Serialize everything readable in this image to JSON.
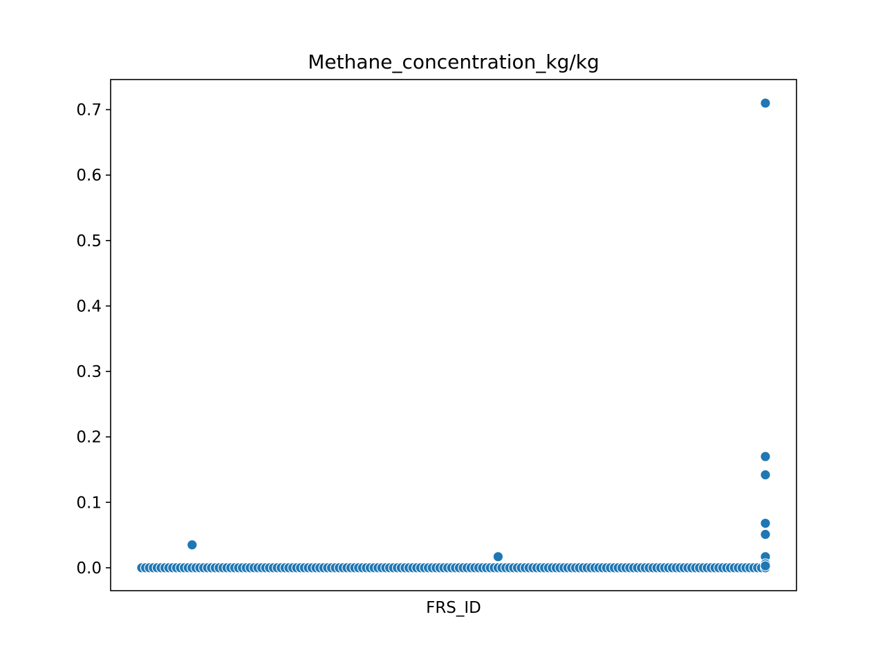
{
  "chart_data": {
    "type": "scatter",
    "title": "Methane_concentration_kg/kg",
    "xlabel": "FRS_ID",
    "ylabel": "",
    "x_ticks_shown": false,
    "ylim": [
      -0.035,
      0.746
    ],
    "yticks": [
      0.0,
      0.1,
      0.2,
      0.3,
      0.4,
      0.5,
      0.6,
      0.7
    ],
    "ytick_labels": [
      "0.0",
      "0.1",
      "0.2",
      "0.3",
      "0.4",
      "0.5",
      "0.6",
      "0.7"
    ],
    "grid": false,
    "legend": false,
    "marker_color": "#1f77b4",
    "marker_edge_color": "#ffffff",
    "baseline_category_count": 162,
    "baseline_value": 0.0,
    "notable_points": [
      {
        "category_index": 13,
        "value": 0.035
      },
      {
        "category_index": 92,
        "value": 0.017
      },
      {
        "category_index": 161,
        "value": 0.71
      },
      {
        "category_index": 161,
        "value": 0.17
      },
      {
        "category_index": 161,
        "value": 0.142
      },
      {
        "category_index": 161,
        "value": 0.068
      },
      {
        "category_index": 161,
        "value": 0.051
      },
      {
        "category_index": 161,
        "value": 0.017
      },
      {
        "category_index": 161,
        "value": 0.006
      },
      {
        "category_index": 161,
        "value": 0.003
      }
    ]
  }
}
